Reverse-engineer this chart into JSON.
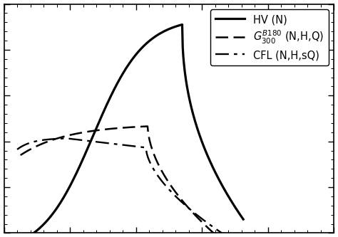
{
  "line_color": "#000000",
  "xlim": [
    0,
    1
  ],
  "ylim": [
    0,
    1
  ],
  "background_color": "#ffffff",
  "spine_color": "#000000",
  "tick_color": "#000000",
  "legend_fontsize": 10.5,
  "hv_label": "HV (N)",
  "g300_label": "$G_{300}^{B180}$ (N,H,Q)",
  "cfl_label": "CFL (N,H,sQ)",
  "hv_lw": 2.3,
  "g300_lw": 1.8,
  "cfl_lw": 1.7
}
